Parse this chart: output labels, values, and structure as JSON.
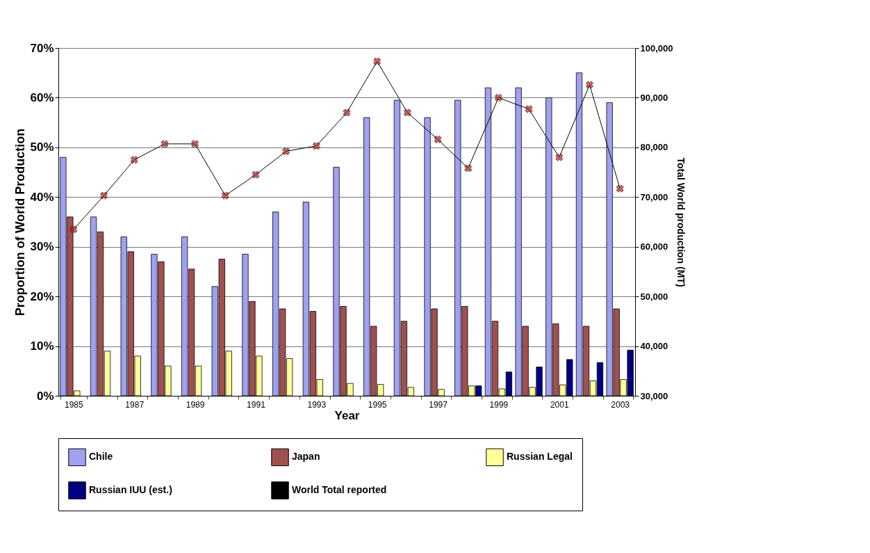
{
  "chart_data": {
    "type": "bar",
    "xlabel": "Year",
    "ylabel": "Proportion of World Production",
    "y2label": "Total World production (MT)",
    "categories": [
      "1985",
      null,
      "1987",
      null,
      "1989",
      null,
      "1991",
      null,
      "1993",
      null,
      "1995",
      null,
      "1997",
      null,
      "1999",
      null,
      "2001",
      null,
      "2003"
    ],
    "series": [
      {
        "name": "Chile",
        "color": "#a0a0f0",
        "values": [
          48,
          36,
          32,
          28.5,
          32,
          22,
          28.5,
          37,
          39,
          46,
          56,
          59.5,
          56,
          59.5,
          62,
          62,
          60,
          65,
          59
        ]
      },
      {
        "name": "Japan",
        "color": "#a05050",
        "values": [
          36,
          33,
          29,
          27,
          25.5,
          27.5,
          19,
          17.5,
          17,
          18,
          14,
          15,
          17.5,
          18,
          15,
          14,
          14.5,
          14,
          17.5
        ]
      },
      {
        "name": "Russian Legal",
        "color": "#ffff99",
        "values": [
          1,
          9,
          8,
          6,
          6,
          9,
          8,
          7.5,
          3.3,
          2.5,
          2.3,
          1.7,
          1.3,
          2,
          1.4,
          1.7,
          2.2,
          3,
          3.3
        ]
      },
      {
        "name": "Russian IUU (est.)",
        "color": "#000080",
        "values": [
          null,
          null,
          null,
          null,
          null,
          null,
          null,
          null,
          null,
          null,
          null,
          null,
          null,
          2,
          4.8,
          5.8,
          7.3,
          6.7,
          9.2
        ]
      },
      {
        "name": "World Total reported",
        "type": "line",
        "axis": "y2",
        "color": "#000000",
        "values": [
          63500,
          70300,
          77500,
          80700,
          80700,
          70300,
          74500,
          79200,
          80300,
          87000,
          97300,
          87000,
          81600,
          75800,
          90000,
          87700,
          78000,
          92600,
          71700
        ]
      }
    ],
    "ylim": [
      0,
      70
    ],
    "yticks": [
      {
        "value": 0,
        "label": "0%"
      },
      {
        "value": 10,
        "label": "10%"
      },
      {
        "value": 20,
        "label": "20%"
      },
      {
        "value": 30,
        "label": "30%"
      },
      {
        "value": 40,
        "label": "40%"
      },
      {
        "value": 50,
        "label": "50%"
      },
      {
        "value": 60,
        "label": "60%"
      },
      {
        "value": 70,
        "label": "70%"
      }
    ],
    "y2lim": [
      30000,
      100000
    ],
    "y2ticks": [
      {
        "value": 30000,
        "label": "30,000"
      },
      {
        "value": 40000,
        "label": "40,000"
      },
      {
        "value": 50000,
        "label": "50,000"
      },
      {
        "value": 60000,
        "label": "60,000"
      },
      {
        "value": 70000,
        "label": "70,000"
      },
      {
        "value": 80000,
        "label": "80,000"
      },
      {
        "value": 90000,
        "label": "90,000"
      },
      {
        "value": 100000,
        "label": "100,000"
      }
    ],
    "grid": "y",
    "legend": "bottom",
    "marker": "cross",
    "line_style": "solid"
  }
}
